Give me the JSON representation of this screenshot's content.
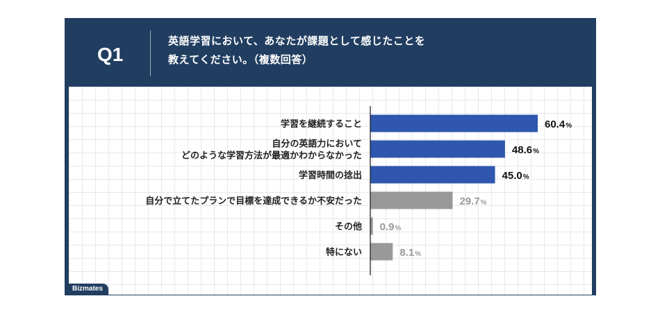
{
  "header": {
    "question_no": "Q1",
    "question_line1": "英語学習において、あなたが課題として感じたことを",
    "question_line2": "教えてください。（複数回答）"
  },
  "brand": {
    "logo_text": "Bizmates"
  },
  "colors": {
    "highlight": "#2e57ad",
    "other": "#999999",
    "navy": "#213e61"
  },
  "chart_data": {
    "type": "bar",
    "orientation": "horizontal",
    "unit": "%",
    "xlim": [
      0,
      100
    ],
    "grid": true,
    "categories": [
      "学習を継続すること",
      "自分の英語力において\nどのような学習方法が最適かわからなかった",
      "学習時間の捻出",
      "自分で立てたプランで目標を達成できるか不安だった",
      "その他",
      "特にない"
    ],
    "values": [
      60.4,
      48.6,
      45.0,
      29.7,
      0.9,
      8.1
    ],
    "value_labels": [
      "60.4",
      "48.6",
      "45.0",
      "29.7",
      "0.9",
      "8.1"
    ],
    "highlighted": [
      true,
      true,
      true,
      false,
      false,
      false
    ]
  }
}
